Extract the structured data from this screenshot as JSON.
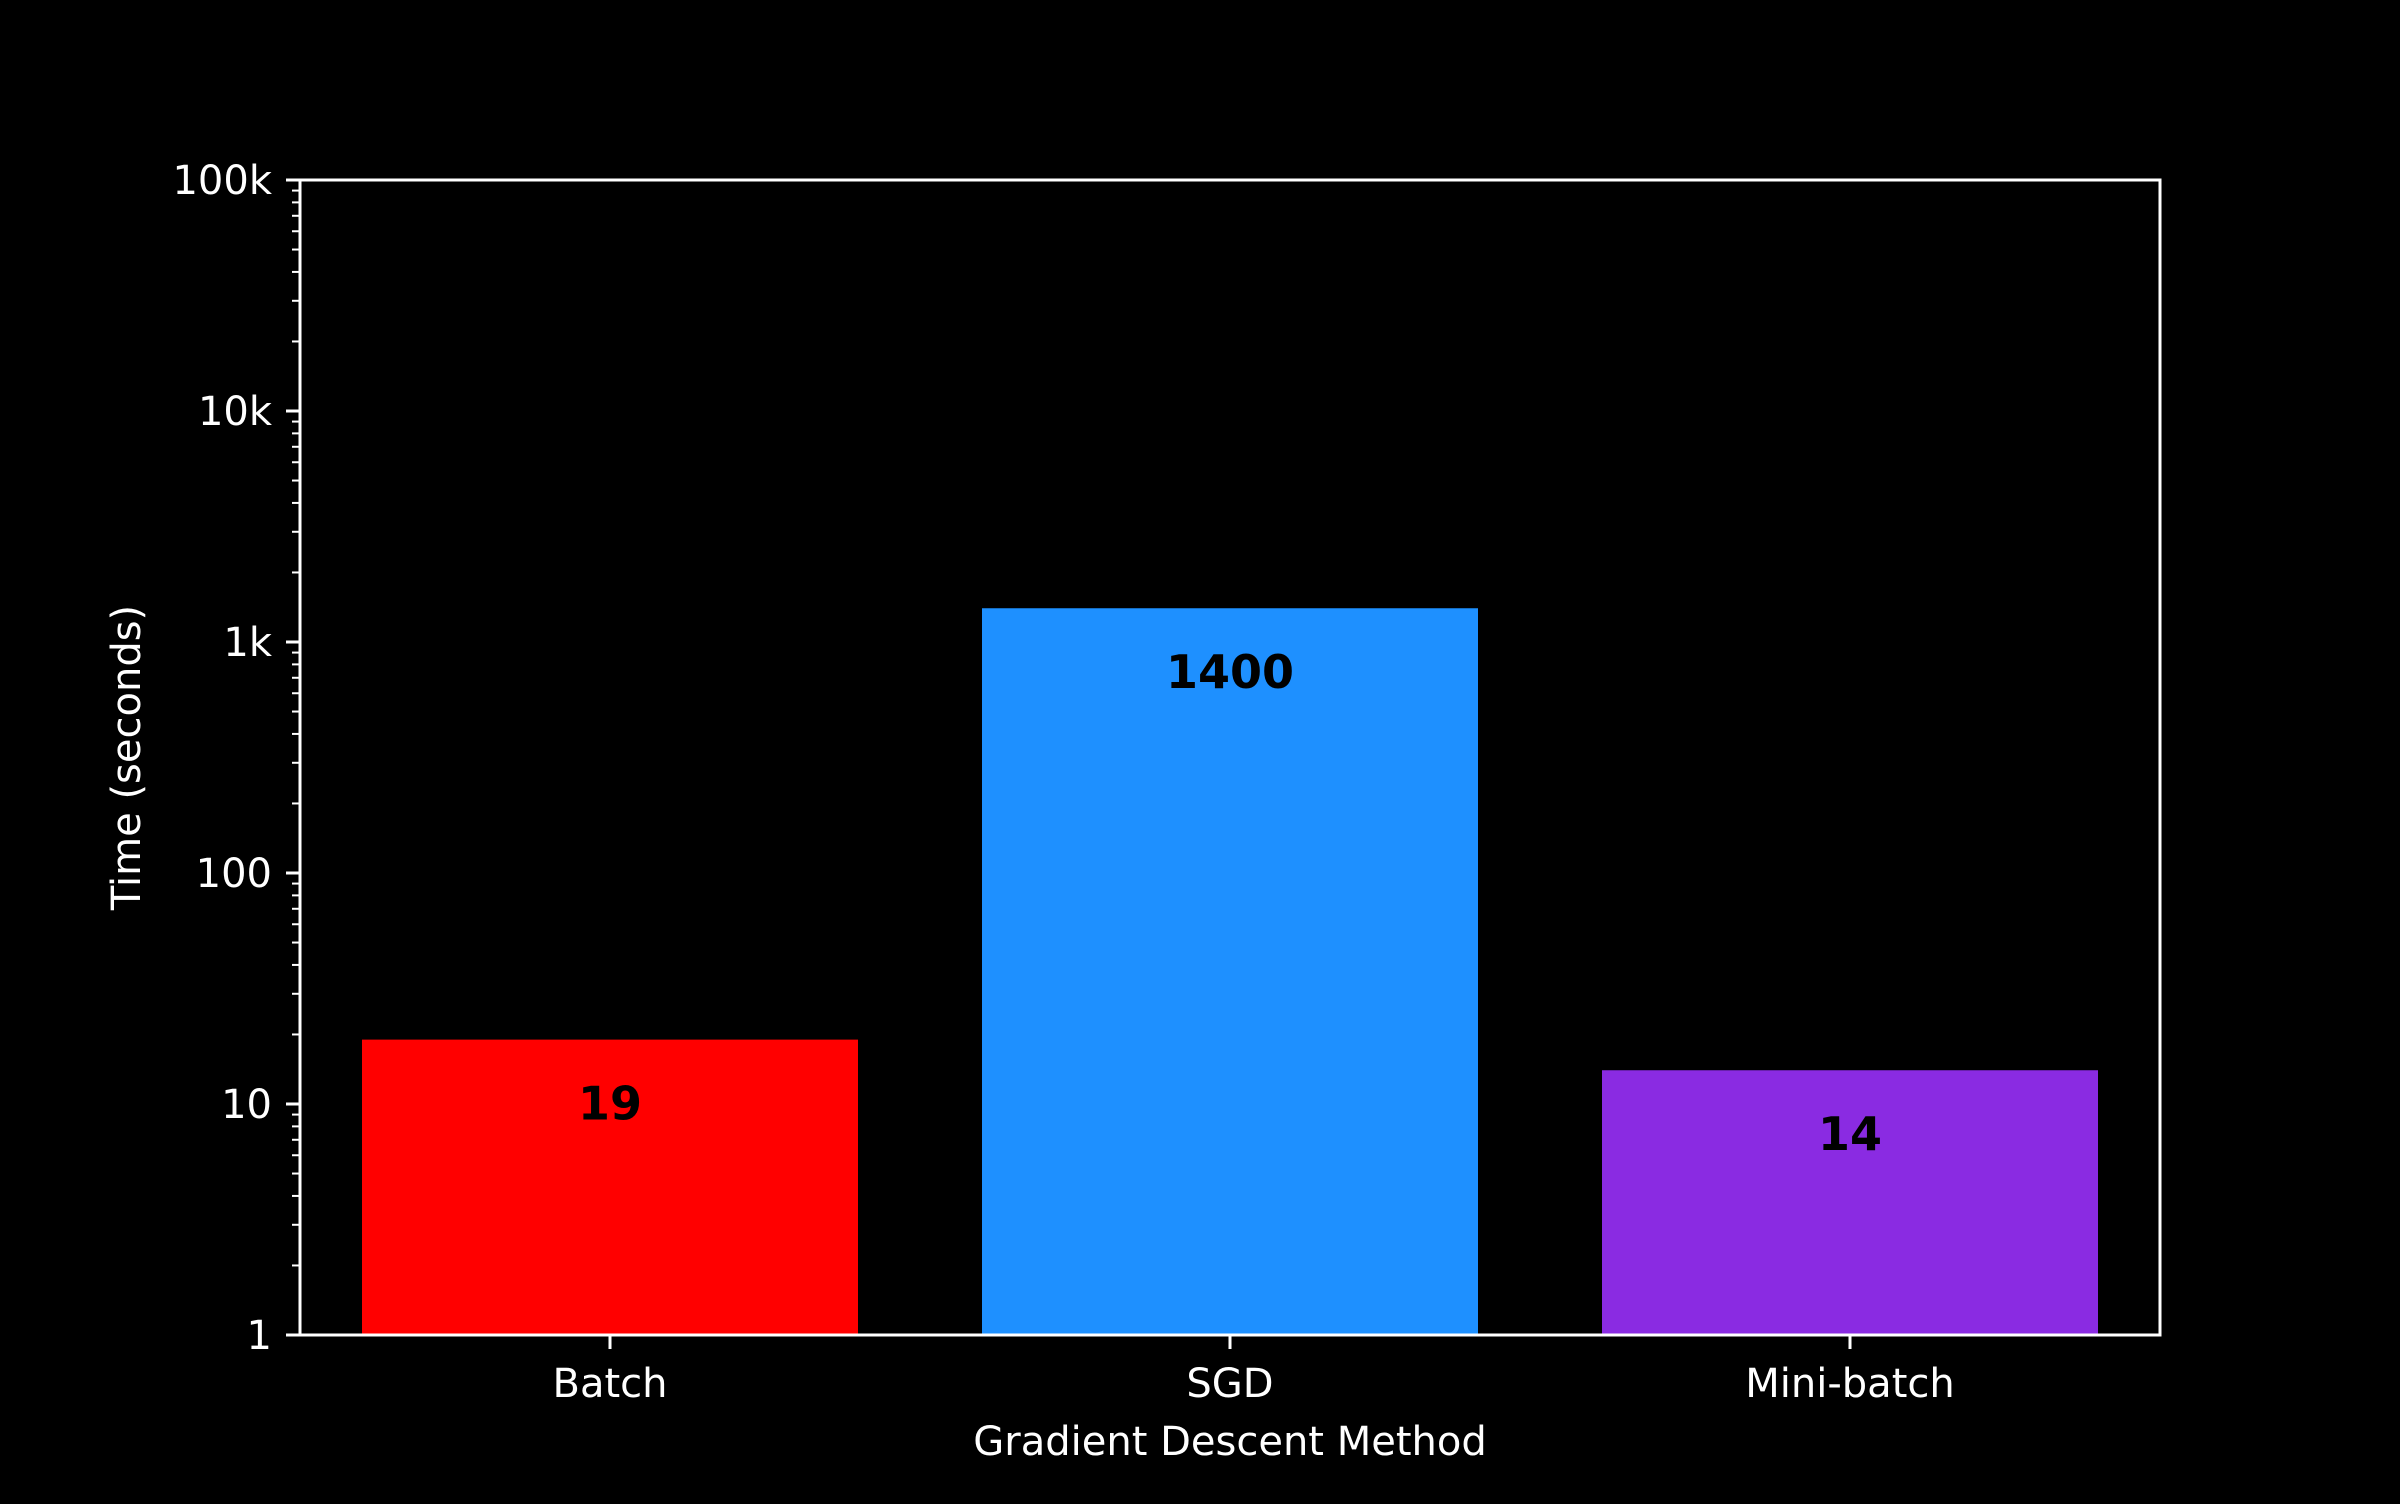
{
  "chart_data": {
    "type": "bar",
    "categories": [
      "Batch",
      "SGD",
      "Mini-batch"
    ],
    "values": [
      19,
      1400,
      14
    ],
    "value_labels": [
      "19",
      "1400",
      "14"
    ],
    "colors": [
      "#ff0000",
      "#1e90ff",
      "#8a2be2"
    ],
    "title": "",
    "xlabel": "Gradient Descent Method",
    "ylabel": "Time (seconds)",
    "yscale": "log",
    "ylim": [
      1,
      100000
    ],
    "yticks": [
      1,
      10,
      100,
      1000,
      10000,
      100000
    ],
    "ytick_labels": [
      "1",
      "10",
      "100",
      "1k",
      "10k",
      "100k"
    ],
    "grid": false,
    "background": "#000000",
    "axis_color": "#ffffff"
  }
}
